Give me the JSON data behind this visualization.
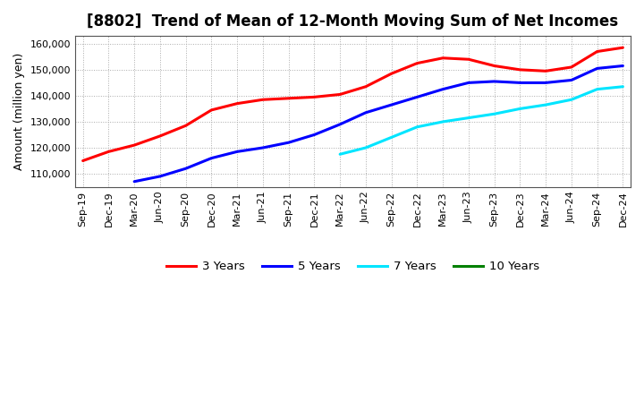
{
  "title": "[8802]  Trend of Mean of 12-Month Moving Sum of Net Incomes",
  "ylabel": "Amount (million yen)",
  "x_labels": [
    "Sep-19",
    "Dec-19",
    "Mar-20",
    "Jun-20",
    "Sep-20",
    "Dec-20",
    "Mar-21",
    "Jun-21",
    "Sep-21",
    "Dec-21",
    "Mar-22",
    "Jun-22",
    "Sep-22",
    "Dec-22",
    "Mar-23",
    "Jun-23",
    "Sep-23",
    "Dec-23",
    "Mar-24",
    "Jun-24",
    "Sep-24",
    "Dec-24"
  ],
  "ylim": [
    105000,
    163000
  ],
  "yticks": [
    110000,
    120000,
    130000,
    140000,
    150000,
    160000
  ],
  "series": {
    "3 Years": {
      "color": "#ff0000",
      "data_x": [
        0,
        1,
        2,
        3,
        4,
        5,
        6,
        7,
        8,
        9,
        10,
        11,
        12,
        13,
        14,
        15,
        16,
        17,
        18,
        19,
        20,
        21
      ],
      "data_y": [
        115000,
        118500,
        121000,
        124500,
        128500,
        134500,
        137000,
        138500,
        139000,
        139500,
        140500,
        143500,
        148500,
        152500,
        154500,
        154000,
        151500,
        150000,
        149500,
        151000,
        157000,
        158500
      ]
    },
    "5 Years": {
      "color": "#0000ff",
      "data_x": [
        2,
        3,
        4,
        5,
        6,
        7,
        8,
        9,
        10,
        11,
        12,
        13,
        14,
        15,
        16,
        17,
        18,
        19,
        20,
        21
      ],
      "data_y": [
        107000,
        109000,
        112000,
        116000,
        118500,
        120000,
        122000,
        125000,
        129000,
        133500,
        136500,
        139500,
        142500,
        145000,
        145500,
        145000,
        145000,
        146000,
        150500,
        151500
      ]
    },
    "7 Years": {
      "color": "#00e5ff",
      "data_x": [
        10,
        11,
        12,
        13,
        14,
        15,
        16,
        17,
        18,
        19,
        20,
        21
      ],
      "data_y": [
        117500,
        120000,
        124000,
        128000,
        130000,
        131500,
        133000,
        135000,
        136500,
        138500,
        142500,
        143500
      ]
    },
    "10 Years": {
      "color": "#008000",
      "data_x": [],
      "data_y": []
    }
  },
  "legend_labels": [
    "3 Years",
    "5 Years",
    "7 Years",
    "10 Years"
  ],
  "legend_colors": [
    "#ff0000",
    "#0000ff",
    "#00e5ff",
    "#008000"
  ],
  "background_color": "#ffffff",
  "plot_bg_color": "#ffffff",
  "grid_color": "#aaaaaa",
  "title_fontsize": 12,
  "tick_fontsize": 8,
  "ylabel_fontsize": 9
}
